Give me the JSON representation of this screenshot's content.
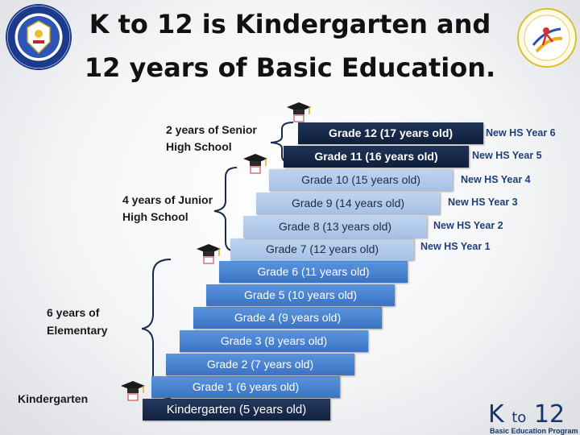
{
  "title": {
    "line1": "K to 12 is Kindergarten and",
    "line2": "12 years of Basic Education."
  },
  "logos": {
    "deped_seal": "deped-seal-icon",
    "efa": "education-for-all-logo",
    "program": {
      "k": "K",
      "to": "to",
      "num": "12",
      "sub": "Basic Education Program"
    }
  },
  "steps": [
    {
      "label": "Kindergarten (5 years old)",
      "stage": "kindergarten"
    },
    {
      "label": "Grade 1 (6 years old)",
      "stage": "elementary"
    },
    {
      "label": "Grade 2 (7 years old)",
      "stage": "elementary"
    },
    {
      "label": "Grade 3 (8 years old)",
      "stage": "elementary"
    },
    {
      "label": "Grade 4 (9 years old)",
      "stage": "elementary"
    },
    {
      "label": "Grade 5 (10 years old)",
      "stage": "elementary"
    },
    {
      "label": "Grade 6 (11 years old)",
      "stage": "elementary"
    },
    {
      "label": "Grade 7 (12 years old)",
      "stage": "junior",
      "hs": "New HS Year 1"
    },
    {
      "label": "Grade 8 (13 years old)",
      "stage": "junior",
      "hs": "New HS Year 2"
    },
    {
      "label": "Grade 9 (14 years old)",
      "stage": "junior",
      "hs": "New HS Year 3"
    },
    {
      "label": "Grade 10 (15 years old)",
      "stage": "junior",
      "hs": "New HS Year 4"
    },
    {
      "label": "Grade 11 (16 years old)",
      "stage": "senior",
      "hs": "New HS Year 5"
    },
    {
      "label": "Grade 12 (17 years old)",
      "stage": "senior",
      "hs": "New HS Year 6"
    }
  ],
  "groups": {
    "kindergarten": "Kindergarten",
    "elementary_l1": "6 years of",
    "elementary_l2": "Elementary",
    "junior_l1": "4 years of Junior",
    "junior_l2": "High School",
    "senior_l1": "2 years of Senior",
    "senior_l2": "High School"
  },
  "colors": {
    "elementary": "#4a84d0",
    "junior": "#b3cbeb",
    "senior": "#182a4a",
    "hs_label": "#1f3f7a"
  }
}
